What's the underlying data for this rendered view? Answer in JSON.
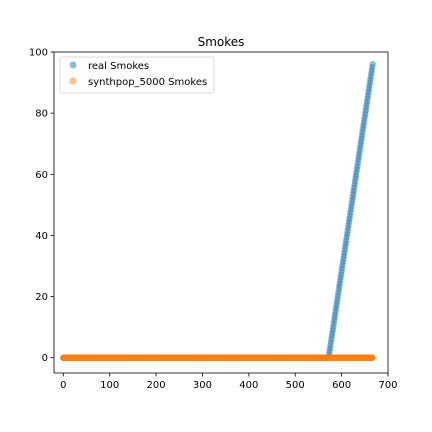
{
  "chart_data": {
    "type": "scatter",
    "title": "Smokes",
    "xlabel": "",
    "ylabel": "",
    "xlim": [
      -20,
      700
    ],
    "ylim": [
      -5,
      100
    ],
    "xticks": [
      "0",
      "100",
      "200",
      "300",
      "400",
      "500",
      "600",
      "700"
    ],
    "yticks": [
      "0",
      "20",
      "40",
      "60",
      "80",
      "100"
    ],
    "grid": false,
    "legend_position": "top-left",
    "series": [
      {
        "name": "real Smokes",
        "color": "#1f77b4",
        "description": "zero until index ~572, then rising linearly to ~96 at index 667",
        "zero_range": [
          0,
          572
        ],
        "ramp_start": [
          572,
          0
        ],
        "ramp_end": [
          667,
          96
        ]
      },
      {
        "name": "synthpop_5000 Smokes",
        "color": "#ff7f0e",
        "description": "zero for all indices",
        "zero_range": [
          0,
          667
        ]
      }
    ]
  }
}
